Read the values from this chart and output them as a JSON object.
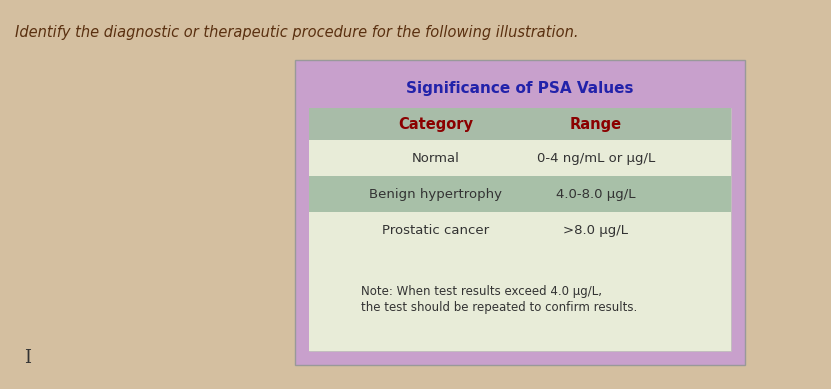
{
  "question_text": "Identify the diagnostic or therapeutic procedure for the following illustration.",
  "table_title": "Significance of PSA Values",
  "col_headers": [
    "Category",
    "Range"
  ],
  "rows": [
    [
      "Normal",
      "0-4 ng/mL or μg/L"
    ],
    [
      "Benign hypertrophy",
      "4.0-8.0 μg/L"
    ],
    [
      "Prostatic cancer",
      ">8.0 μg/L"
    ]
  ],
  "note_text": "Note: When test results exceed 4.0 μg/L,\nthe test should be repeated to confirm results.",
  "page_bg": "#d4bfa0",
  "table_outer_bg": "#c8a0cc",
  "title_bg": "#c8a0cc",
  "title_color": "#2222aa",
  "inner_bg": "#e8e8c8",
  "header_bg": "#a8bca8",
  "header_color": "#8B0000",
  "row_light_bg": "#e8ecd8",
  "row_dark_bg": "#a8c0a8",
  "row_color": "#333333",
  "note_bg": "#e8ecd8",
  "note_color": "#333333",
  "question_color": "#5a3010",
  "cursor_color": "#333333"
}
